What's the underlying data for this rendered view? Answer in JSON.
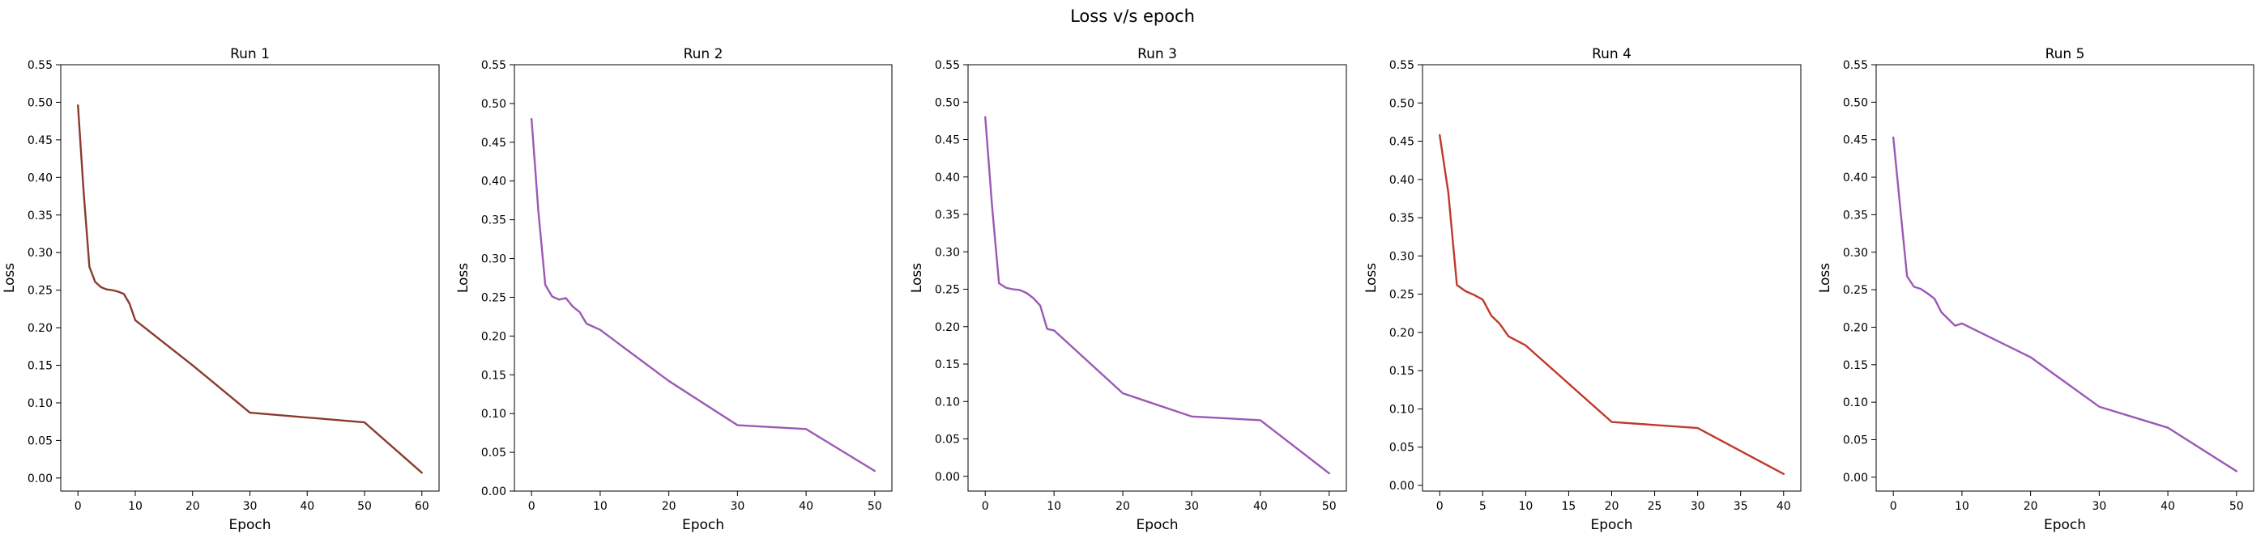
{
  "figure": {
    "title": "Loss v/s epoch"
  },
  "chart_data": [
    {
      "type": "line",
      "title": "Run 1",
      "xlabel": "Epoch",
      "ylabel": "Loss",
      "xlim": [
        -3,
        63
      ],
      "ylim": [
        -0.0174,
        0.55
      ],
      "xticks": [
        0,
        10,
        20,
        30,
        40,
        50,
        60
      ],
      "yticks": [
        0.0,
        0.05,
        0.1,
        0.15,
        0.2,
        0.25,
        0.3,
        0.35,
        0.4,
        0.45,
        0.5,
        0.55
      ],
      "grid": false,
      "series": [
        {
          "color": "#8b3a2f",
          "x": [
            0,
            1,
            2,
            3,
            4,
            5,
            6,
            7,
            8,
            9,
            10,
            20,
            30,
            50,
            60
          ],
          "y": [
            0.496,
            0.38,
            0.281,
            0.261,
            0.254,
            0.251,
            0.25,
            0.248,
            0.245,
            0.232,
            0.21,
            0.15,
            0.087,
            0.074,
            0.007
          ]
        }
      ]
    },
    {
      "type": "line",
      "title": "Run 2",
      "xlabel": "Epoch",
      "ylabel": "Loss",
      "xlim": [
        -2.5,
        52.5
      ],
      "ylim": [
        0.0,
        0.55
      ],
      "xticks": [
        0,
        10,
        20,
        30,
        40,
        50
      ],
      "yticks": [
        0.0,
        0.05,
        0.1,
        0.15,
        0.2,
        0.25,
        0.3,
        0.35,
        0.4,
        0.45,
        0.5,
        0.55
      ],
      "grid": false,
      "series": [
        {
          "color": "#9b59b6",
          "x": [
            0,
            1,
            2,
            3,
            4,
            5,
            6,
            7,
            8,
            10,
            20,
            30,
            40,
            50
          ],
          "y": [
            0.48,
            0.36,
            0.266,
            0.251,
            0.247,
            0.249,
            0.238,
            0.231,
            0.216,
            0.208,
            0.142,
            0.085,
            0.08,
            0.026
          ]
        }
      ]
    },
    {
      "type": "line",
      "title": "Run 3",
      "xlabel": "Epoch",
      "ylabel": "Loss",
      "xlim": [
        -2.5,
        52.5
      ],
      "ylim": [
        -0.0197,
        0.55
      ],
      "xticks": [
        0,
        10,
        20,
        30,
        40,
        50
      ],
      "yticks": [
        0.0,
        0.05,
        0.1,
        0.15,
        0.2,
        0.25,
        0.3,
        0.35,
        0.4,
        0.45,
        0.5,
        0.55
      ],
      "grid": false,
      "series": [
        {
          "color": "#9b59b6",
          "x": [
            0,
            1,
            2,
            3,
            4,
            5,
            6,
            7,
            8,
            9,
            10,
            20,
            30,
            40,
            50
          ],
          "y": [
            0.48,
            0.36,
            0.258,
            0.252,
            0.25,
            0.249,
            0.245,
            0.238,
            0.228,
            0.197,
            0.195,
            0.111,
            0.08,
            0.075,
            0.004
          ]
        }
      ]
    },
    {
      "type": "line",
      "title": "Run 4",
      "xlabel": "Epoch",
      "ylabel": "Loss",
      "xlim": [
        -2,
        42
      ],
      "ylim": [
        -0.0074,
        0.55
      ],
      "xticks": [
        0,
        5,
        10,
        15,
        20,
        25,
        30,
        35,
        40
      ],
      "yticks": [
        0.0,
        0.05,
        0.1,
        0.15,
        0.2,
        0.25,
        0.3,
        0.35,
        0.4,
        0.45,
        0.5,
        0.55
      ],
      "grid": false,
      "series": [
        {
          "color": "#c0392b",
          "x": [
            0,
            1,
            2,
            3,
            4,
            5,
            6,
            7,
            8,
            9,
            10,
            20,
            30,
            40
          ],
          "y": [
            0.458,
            0.383,
            0.262,
            0.254,
            0.249,
            0.243,
            0.222,
            0.211,
            0.195,
            0.189,
            0.183,
            0.083,
            0.075,
            0.015
          ]
        }
      ]
    },
    {
      "type": "line",
      "title": "Run 5",
      "xlabel": "Epoch",
      "ylabel": "Loss",
      "xlim": [
        -2.5,
        52.5
      ],
      "ylim": [
        -0.0185,
        0.55
      ],
      "xticks": [
        0,
        10,
        20,
        30,
        40,
        50
      ],
      "yticks": [
        0.0,
        0.05,
        0.1,
        0.15,
        0.2,
        0.25,
        0.3,
        0.35,
        0.4,
        0.45,
        0.5,
        0.55
      ],
      "grid": false,
      "series": [
        {
          "color": "#9b59b6",
          "x": [
            0,
            1,
            2,
            3,
            4,
            5,
            6,
            7,
            8,
            9,
            10,
            20,
            30,
            40,
            50
          ],
          "y": [
            0.453,
            0.36,
            0.268,
            0.254,
            0.251,
            0.245,
            0.238,
            0.22,
            0.211,
            0.202,
            0.205,
            0.16,
            0.094,
            0.066,
            0.008
          ]
        }
      ]
    }
  ]
}
